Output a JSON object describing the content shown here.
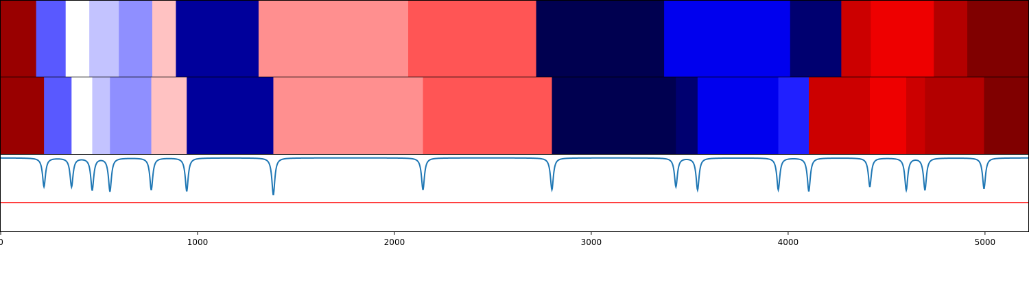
{
  "chart_data": {
    "type": "heatmap",
    "title": "",
    "xlabel": "",
    "ylabel": "",
    "xlim": [
      0,
      5220
    ],
    "xticks": [
      0,
      1000,
      2000,
      3000,
      4000,
      5000
    ],
    "grid": false,
    "legend": "none",
    "rows": [
      {
        "segments": [
          {
            "start": 0,
            "end": 180,
            "color": "#990000"
          },
          {
            "start": 180,
            "end": 330,
            "color": "#5959ff"
          },
          {
            "start": 330,
            "end": 450,
            "color": "#ffffff"
          },
          {
            "start": 450,
            "end": 600,
            "color": "#c3c3ff"
          },
          {
            "start": 600,
            "end": 770,
            "color": "#8f8fff"
          },
          {
            "start": 770,
            "end": 890,
            "color": "#ffc2c2"
          },
          {
            "start": 890,
            "end": 1310,
            "color": "#00009b"
          },
          {
            "start": 1310,
            "end": 2070,
            "color": "#ff8f8f"
          },
          {
            "start": 2070,
            "end": 2720,
            "color": "#ff5555"
          },
          {
            "start": 2720,
            "end": 3370,
            "color": "#000050"
          },
          {
            "start": 3370,
            "end": 4010,
            "color": "#0000ee"
          },
          {
            "start": 4010,
            "end": 4270,
            "color": "#000070"
          },
          {
            "start": 4270,
            "end": 4420,
            "color": "#cc0000"
          },
          {
            "start": 4420,
            "end": 4740,
            "color": "#ee0000"
          },
          {
            "start": 4740,
            "end": 4910,
            "color": "#b30000"
          },
          {
            "start": 4910,
            "end": 5220,
            "color": "#800000"
          }
        ]
      },
      {
        "segments": [
          {
            "start": 0,
            "end": 220,
            "color": "#990000"
          },
          {
            "start": 220,
            "end": 360,
            "color": "#5959ff"
          },
          {
            "start": 360,
            "end": 465,
            "color": "#ffffff"
          },
          {
            "start": 465,
            "end": 555,
            "color": "#c3c3ff"
          },
          {
            "start": 555,
            "end": 765,
            "color": "#8f8fff"
          },
          {
            "start": 765,
            "end": 945,
            "color": "#ffc2c2"
          },
          {
            "start": 945,
            "end": 1385,
            "color": "#00009b"
          },
          {
            "start": 1385,
            "end": 2145,
            "color": "#ff8f8f"
          },
          {
            "start": 2145,
            "end": 2800,
            "color": "#ff5555"
          },
          {
            "start": 2800,
            "end": 3430,
            "color": "#000050"
          },
          {
            "start": 3430,
            "end": 3540,
            "color": "#000070"
          },
          {
            "start": 3540,
            "end": 3950,
            "color": "#0000ee"
          },
          {
            "start": 3950,
            "end": 4105,
            "color": "#2020ff"
          },
          {
            "start": 4105,
            "end": 4415,
            "color": "#cc0000"
          },
          {
            "start": 4415,
            "end": 4600,
            "color": "#ee0000"
          },
          {
            "start": 4600,
            "end": 4695,
            "color": "#cc0000"
          },
          {
            "start": 4695,
            "end": 4995,
            "color": "#b30000"
          },
          {
            "start": 4995,
            "end": 5220,
            "color": "#800000"
          }
        ]
      }
    ],
    "signal": {
      "color": "#1f77b4",
      "baseline": 1.0,
      "ylim": [
        -0.15,
        1.05
      ],
      "dips": [
        {
          "x": 220,
          "depth": 0.45
        },
        {
          "x": 360,
          "depth": 0.45
        },
        {
          "x": 465,
          "depth": 0.5
        },
        {
          "x": 555,
          "depth": 0.52
        },
        {
          "x": 765,
          "depth": 0.5
        },
        {
          "x": 945,
          "depth": 0.52
        },
        {
          "x": 1385,
          "depth": 0.58
        },
        {
          "x": 2145,
          "depth": 0.5
        },
        {
          "x": 2800,
          "depth": 0.5
        },
        {
          "x": 3430,
          "depth": 0.45
        },
        {
          "x": 3540,
          "depth": 0.5
        },
        {
          "x": 3950,
          "depth": 0.5
        },
        {
          "x": 4105,
          "depth": 0.52
        },
        {
          "x": 4415,
          "depth": 0.45
        },
        {
          "x": 4600,
          "depth": 0.5
        },
        {
          "x": 4695,
          "depth": 0.5
        },
        {
          "x": 4995,
          "depth": 0.48
        }
      ],
      "threshold": {
        "y": 0.3,
        "color": "#ff0000"
      }
    },
    "colors": {
      "axis": "#000000",
      "background": "#ffffff"
    }
  }
}
